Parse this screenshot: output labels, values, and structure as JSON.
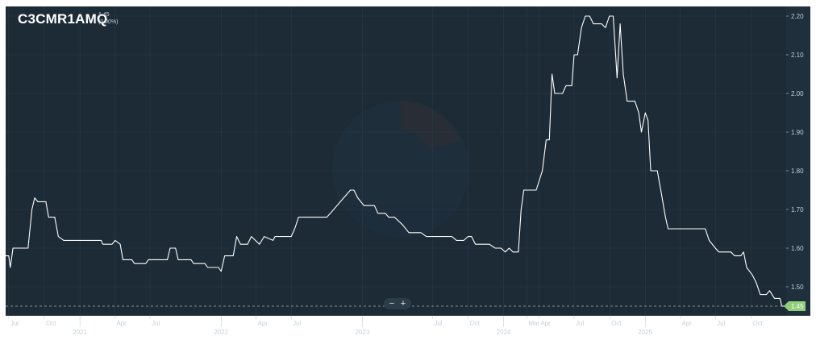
{
  "header": {
    "ticker": "C3CMR1AMQ",
    "last_value": "1.45",
    "change": "(0.00%)"
  },
  "controls": {
    "zoom_out": "−",
    "zoom_in": "+"
  },
  "colors": {
    "background": "#1c2b36",
    "line": "#ffffff",
    "grid": "#2a3a46",
    "axis_text": "#c6d0d8",
    "last_price_marker": "#8fcf7a"
  },
  "chart_data": {
    "type": "line",
    "title": "C3CMR1AMQ",
    "xlabel": "",
    "ylabel": "",
    "xlim": [
      "2020-06-23",
      "2025-12-31"
    ],
    "ylim": [
      1.425,
      2.225
    ],
    "y_ticks": [
      1.5,
      1.6,
      1.7,
      1.8,
      1.9,
      2.0,
      2.1,
      2.2
    ],
    "y_tick_labels": [
      "1.50",
      "1.60",
      "1.70",
      "1.80",
      "1.90",
      "2.00",
      "2.10",
      "2.20"
    ],
    "x_ticks": [
      {
        "date": "2020-07-01",
        "label": "Jul",
        "row": 1
      },
      {
        "date": "2020-10-01",
        "label": "Oct",
        "row": 1
      },
      {
        "date": "2021-01-01",
        "label": "2021",
        "row": 2
      },
      {
        "date": "2021-04-01",
        "label": "Apr",
        "row": 1
      },
      {
        "date": "2021-07-01",
        "label": "Jul",
        "row": 1
      },
      {
        "date": "2022-01-01",
        "label": "2022",
        "row": 2
      },
      {
        "date": "2022-04-01",
        "label": "Apr",
        "row": 1
      },
      {
        "date": "2022-07-01",
        "label": "Jul",
        "row": 1
      },
      {
        "date": "2023-01-01",
        "label": "2023",
        "row": 2
      },
      {
        "date": "2023-07-01",
        "label": "Jul",
        "row": 1
      },
      {
        "date": "2023-10-01",
        "label": "Oct",
        "row": 1
      },
      {
        "date": "2024-01-01",
        "label": "2024",
        "row": 2
      },
      {
        "date": "2024-03-01",
        "label": "Mar",
        "row": 1
      },
      {
        "date": "2024-04-01",
        "label": "Apr",
        "row": 1
      },
      {
        "date": "2024-07-01",
        "label": "Jul",
        "row": 1
      },
      {
        "date": "2024-10-01",
        "label": "Oct",
        "row": 1
      },
      {
        "date": "2025-01-01",
        "label": "2025",
        "row": 2
      },
      {
        "date": "2025-04-01",
        "label": "Apr",
        "row": 1
      },
      {
        "date": "2025-07-01",
        "label": "Jul",
        "row": 1
      },
      {
        "date": "2025-10-01",
        "label": "Oct",
        "row": 1
      }
    ],
    "grid": true,
    "last_value": 1.45,
    "last_value_label": "1.45",
    "series": [
      {
        "points": [
          [
            "2020-06-23",
            1.58
          ],
          [
            "2020-07-01",
            1.58
          ],
          [
            "2020-07-05",
            1.55
          ],
          [
            "2020-07-12",
            1.6
          ],
          [
            "2020-08-20",
            1.6
          ],
          [
            "2020-08-30",
            1.7
          ],
          [
            "2020-09-06",
            1.73
          ],
          [
            "2020-09-14",
            1.72
          ],
          [
            "2020-10-05",
            1.72
          ],
          [
            "2020-10-12",
            1.68
          ],
          [
            "2020-10-28",
            1.68
          ],
          [
            "2020-11-06",
            1.63
          ],
          [
            "2020-11-20",
            1.62
          ],
          [
            "2021-01-15",
            1.62
          ],
          [
            "2021-02-25",
            1.62
          ],
          [
            "2021-03-01",
            1.61
          ],
          [
            "2021-03-25",
            1.61
          ],
          [
            "2021-04-02",
            1.62
          ],
          [
            "2021-04-15",
            1.61
          ],
          [
            "2021-04-22",
            1.57
          ],
          [
            "2021-05-15",
            1.57
          ],
          [
            "2021-05-22",
            1.56
          ],
          [
            "2021-06-20",
            1.56
          ],
          [
            "2021-06-27",
            1.57
          ],
          [
            "2021-08-15",
            1.57
          ],
          [
            "2021-08-22",
            1.6
          ],
          [
            "2021-09-05",
            1.6
          ],
          [
            "2021-09-12",
            1.57
          ],
          [
            "2021-10-15",
            1.57
          ],
          [
            "2021-10-22",
            1.56
          ],
          [
            "2021-11-20",
            1.56
          ],
          [
            "2021-11-27",
            1.55
          ],
          [
            "2021-12-25",
            1.55
          ],
          [
            "2022-01-01",
            1.54
          ],
          [
            "2022-01-10",
            1.58
          ],
          [
            "2022-02-01",
            1.58
          ],
          [
            "2022-02-10",
            1.63
          ],
          [
            "2022-02-20",
            1.61
          ],
          [
            "2022-03-10",
            1.61
          ],
          [
            "2022-03-20",
            1.63
          ],
          [
            "2022-04-10",
            1.61
          ],
          [
            "2022-04-22",
            1.63
          ],
          [
            "2022-05-15",
            1.62
          ],
          [
            "2022-05-20",
            1.63
          ],
          [
            "2022-06-20",
            1.63
          ],
          [
            "2022-07-01",
            1.63
          ],
          [
            "2022-07-10",
            1.65
          ],
          [
            "2022-07-20",
            1.68
          ],
          [
            "2022-09-01",
            1.68
          ],
          [
            "2022-10-01",
            1.68
          ],
          [
            "2022-10-10",
            1.69
          ],
          [
            "2022-11-05",
            1.72
          ],
          [
            "2022-12-01",
            1.75
          ],
          [
            "2022-12-10",
            1.75
          ],
          [
            "2022-12-20",
            1.73
          ],
          [
            "2023-01-05",
            1.71
          ],
          [
            "2023-02-01",
            1.71
          ],
          [
            "2023-02-10",
            1.69
          ],
          [
            "2023-03-01",
            1.69
          ],
          [
            "2023-03-10",
            1.68
          ],
          [
            "2023-03-25",
            1.68
          ],
          [
            "2023-04-15",
            1.66
          ],
          [
            "2023-05-01",
            1.64
          ],
          [
            "2023-06-01",
            1.64
          ],
          [
            "2023-06-15",
            1.63
          ],
          [
            "2023-08-20",
            1.63
          ],
          [
            "2023-09-01",
            1.62
          ],
          [
            "2023-09-20",
            1.62
          ],
          [
            "2023-10-01",
            1.63
          ],
          [
            "2023-10-10",
            1.63
          ],
          [
            "2023-10-20",
            1.61
          ],
          [
            "2023-11-25",
            1.61
          ],
          [
            "2023-12-10",
            1.6
          ],
          [
            "2023-12-25",
            1.6
          ],
          [
            "2024-01-05",
            1.59
          ],
          [
            "2024-01-15",
            1.6
          ],
          [
            "2024-01-25",
            1.59
          ],
          [
            "2024-02-08",
            1.59
          ],
          [
            "2024-02-15",
            1.7
          ],
          [
            "2024-02-22",
            1.75
          ],
          [
            "2024-03-25",
            1.75
          ],
          [
            "2024-04-10",
            1.8
          ],
          [
            "2024-04-20",
            1.88
          ],
          [
            "2024-04-28",
            1.88
          ],
          [
            "2024-05-05",
            2.05
          ],
          [
            "2024-05-12",
            2.0
          ],
          [
            "2024-06-01",
            2.0
          ],
          [
            "2024-06-10",
            2.02
          ],
          [
            "2024-06-25",
            2.02
          ],
          [
            "2024-07-01",
            2.1
          ],
          [
            "2024-07-10",
            2.1
          ],
          [
            "2024-07-20",
            2.17
          ],
          [
            "2024-07-30",
            2.2
          ],
          [
            "2024-08-10",
            2.2
          ],
          [
            "2024-08-20",
            2.18
          ],
          [
            "2024-09-10",
            2.18
          ],
          [
            "2024-09-20",
            2.17
          ],
          [
            "2024-09-30",
            2.2
          ],
          [
            "2024-10-10",
            2.2
          ],
          [
            "2024-10-20",
            2.04
          ],
          [
            "2024-10-28",
            2.18
          ],
          [
            "2024-11-05",
            2.05
          ],
          [
            "2024-11-15",
            1.98
          ],
          [
            "2024-12-05",
            1.98
          ],
          [
            "2024-12-15",
            1.95
          ],
          [
            "2024-12-22",
            1.9
          ],
          [
            "2025-01-01",
            1.95
          ],
          [
            "2025-01-08",
            1.93
          ],
          [
            "2025-01-15",
            1.8
          ],
          [
            "2025-02-01",
            1.8
          ],
          [
            "2025-02-10",
            1.75
          ],
          [
            "2025-02-22",
            1.68
          ],
          [
            "2025-03-01",
            1.65
          ],
          [
            "2025-06-05",
            1.65
          ],
          [
            "2025-06-15",
            1.62
          ],
          [
            "2025-07-01",
            1.6
          ],
          [
            "2025-07-10",
            1.59
          ],
          [
            "2025-08-10",
            1.59
          ],
          [
            "2025-08-20",
            1.58
          ],
          [
            "2025-09-05",
            1.58
          ],
          [
            "2025-09-12",
            1.59
          ],
          [
            "2025-09-20",
            1.55
          ],
          [
            "2025-10-05",
            1.53
          ],
          [
            "2025-10-15",
            1.51
          ],
          [
            "2025-10-25",
            1.48
          ],
          [
            "2025-11-10",
            1.48
          ],
          [
            "2025-11-18",
            1.49
          ],
          [
            "2025-12-01",
            1.47
          ],
          [
            "2025-12-15",
            1.47
          ],
          [
            "2025-12-20",
            1.45
          ],
          [
            "2025-12-31",
            1.45
          ]
        ]
      }
    ]
  }
}
